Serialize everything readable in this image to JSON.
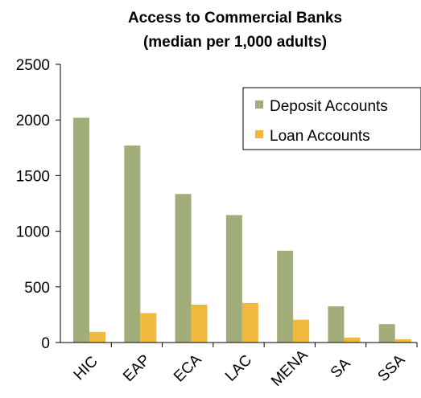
{
  "chart_data": {
    "type": "bar",
    "title": [
      "Access to Commercial Banks",
      "(median per 1,000 adults)"
    ],
    "xlabel": "",
    "ylabel": "",
    "categories": [
      "HIC",
      "EAP",
      "ECA",
      "LAC",
      "MENA",
      "SA",
      "SSA"
    ],
    "ylim": [
      0,
      2500
    ],
    "yticks": [
      0,
      500,
      1000,
      1500,
      2000,
      2500
    ],
    "grid": false,
    "legend_position": "top-right",
    "series": [
      {
        "name": "Deposit Accounts",
        "color": "#a2ae7a",
        "values": [
          2020,
          1770,
          1335,
          1145,
          825,
          325,
          165
        ]
      },
      {
        "name": "Loan Accounts",
        "color": "#f1b93c",
        "values": [
          95,
          265,
          340,
          355,
          205,
          45,
          30
        ]
      }
    ]
  }
}
